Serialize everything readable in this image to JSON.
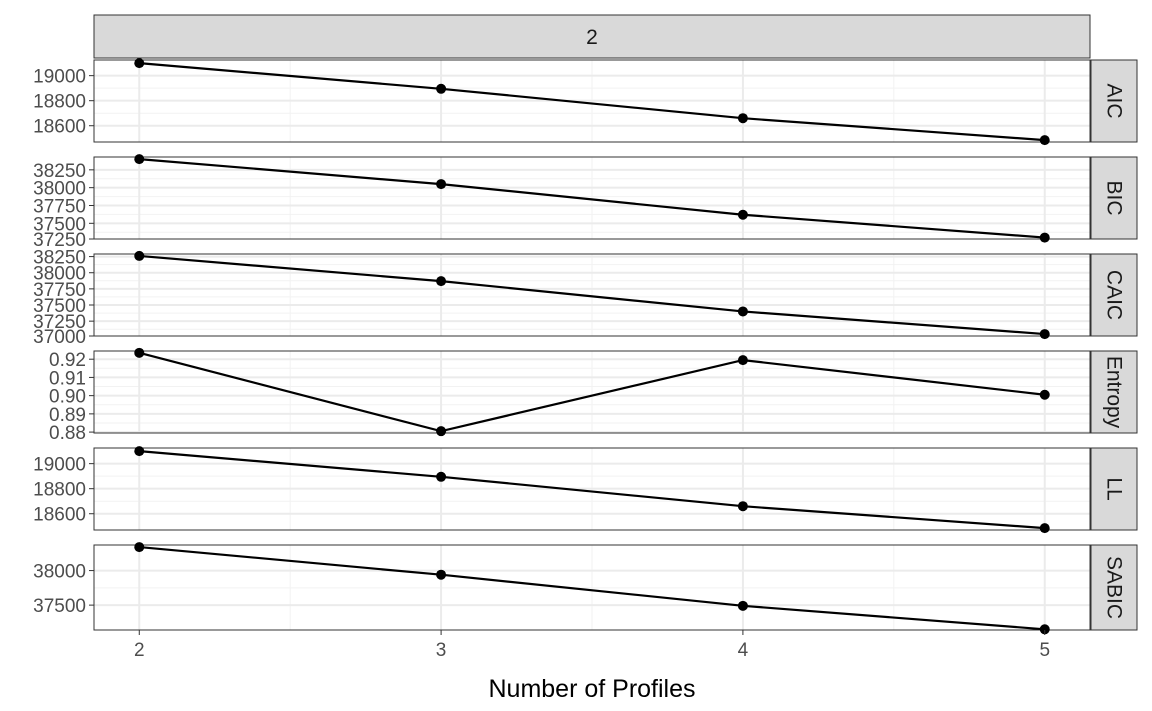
{
  "chart_data": {
    "type": "line",
    "facet_title": "2",
    "xlabel": "Number of Profiles",
    "x": [
      2,
      3,
      4,
      5
    ],
    "x_ticks": [
      "2",
      "3",
      "4",
      "5"
    ],
    "xlim": [
      1.85,
      5.15
    ],
    "grid": true,
    "colors": {
      "line": "#000000",
      "point": "#000000",
      "strip": "#d9d9d9"
    },
    "panels": [
      {
        "label": "AIC",
        "values": [
          19100,
          18895,
          18660,
          18485
        ],
        "ylim": [
          18470,
          19125
        ],
        "yticks": [
          18600,
          18800,
          19000
        ],
        "ytick_labels": [
          "18600",
          "18800",
          "19000"
        ]
      },
      {
        "label": "BIC",
        "values": [
          38400,
          38050,
          37620,
          37300
        ],
        "ylim": [
          37280,
          38430
        ],
        "yticks": [
          37250,
          37500,
          37750,
          38000,
          38250
        ],
        "ytick_labels": [
          "37250",
          "37500",
          "37750",
          "38000",
          "38250"
        ]
      },
      {
        "label": "CAIC",
        "values": [
          38260,
          37870,
          37400,
          37050
        ],
        "ylim": [
          37020,
          38290
        ],
        "yticks": [
          37000,
          37250,
          37500,
          37750,
          38000,
          38250
        ],
        "ytick_labels": [
          "37000",
          "37250",
          "37500",
          "37750",
          "38000",
          "38250"
        ]
      },
      {
        "label": "Entropy",
        "values": [
          0.9235,
          0.8805,
          0.9195,
          0.9005
        ],
        "ylim": [
          0.8795,
          0.9245
        ],
        "yticks": [
          0.88,
          0.89,
          0.9,
          0.91,
          0.92
        ],
        "ytick_labels": [
          "0.88",
          "0.89",
          "0.90",
          "0.91",
          "0.92"
        ]
      },
      {
        "label": "LL",
        "values": [
          19100,
          18895,
          18660,
          18485
        ],
        "ylim": [
          18470,
          19125
        ],
        "yticks": [
          18600,
          18800,
          19000
        ],
        "ytick_labels": [
          "18600",
          "18800",
          "19000"
        ]
      },
      {
        "label": "SABIC",
        "values": [
          38340,
          37940,
          37490,
          37150
        ],
        "ylim": [
          37140,
          38370
        ],
        "yticks": [
          37500,
          38000
        ],
        "ytick_labels": [
          "37500",
          "38000"
        ]
      }
    ]
  }
}
